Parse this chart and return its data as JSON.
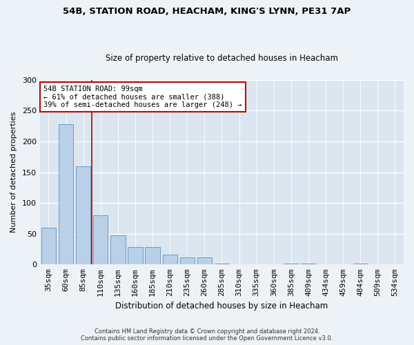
{
  "title_line1": "54B, STATION ROAD, HEACHAM, KING'S LYNN, PE31 7AP",
  "title_line2": "Size of property relative to detached houses in Heacham",
  "xlabel": "Distribution of detached houses by size in Heacham",
  "ylabel": "Number of detached properties",
  "categories": [
    "35sqm",
    "60sqm",
    "85sqm",
    "110sqm",
    "135sqm",
    "160sqm",
    "185sqm",
    "210sqm",
    "235sqm",
    "260sqm",
    "285sqm",
    "310sqm",
    "335sqm",
    "360sqm",
    "385sqm",
    "409sqm",
    "434sqm",
    "459sqm",
    "484sqm",
    "509sqm",
    "534sqm"
  ],
  "values": [
    60,
    228,
    160,
    80,
    47,
    28,
    28,
    16,
    11,
    11,
    2,
    0,
    0,
    0,
    2,
    2,
    0,
    0,
    1,
    0,
    0
  ],
  "bar_color": "#b8d0e8",
  "bar_edge_color": "#6090c0",
  "plot_bg_color": "#dce6f0",
  "fig_bg_color": "#edf2f7",
  "grid_color": "#ffffff",
  "vline_color": "#aa0000",
  "vline_x_index": 2,
  "annotation_text": "54B STATION ROAD: 99sqm\n← 61% of detached houses are smaller (388)\n39% of semi-detached houses are larger (248) →",
  "annotation_box_facecolor": "#ffffff",
  "annotation_box_edgecolor": "#cc0000",
  "ylim": [
    0,
    300
  ],
  "yticks": [
    0,
    50,
    100,
    150,
    200,
    250,
    300
  ],
  "footer_line1": "Contains HM Land Registry data © Crown copyright and database right 2024.",
  "footer_line2": "Contains public sector information licensed under the Open Government Licence v3.0."
}
